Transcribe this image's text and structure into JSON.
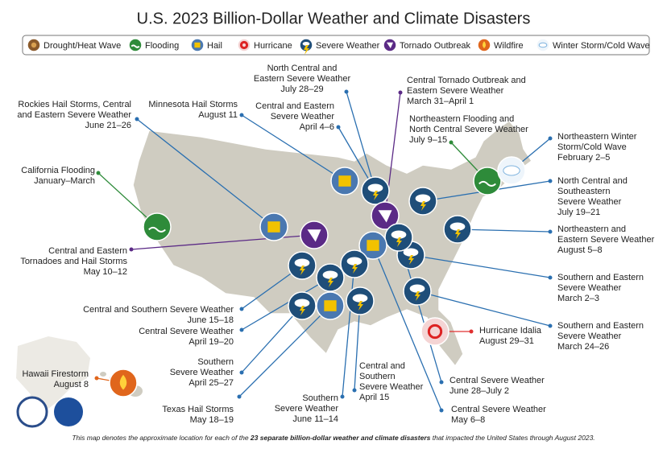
{
  "title": "U.S. 2023 Billion-Dollar Weather and Climate Disasters",
  "legend": [
    "Drought/Heat Wave",
    "Flooding",
    "Hail",
    "Hurricane",
    "Severe Weather",
    "Tornado Outbreak",
    "Wildfire",
    "Winter Storm/Cold Wave"
  ],
  "events": [
    {
      "lines": [
        "Rockies Hail Storms, Central",
        "and Eastern Severe Weather",
        "June 21–26"
      ]
    },
    {
      "lines": [
        "Minnesota Hail Storms",
        "August 11"
      ]
    },
    {
      "lines": [
        "Central and Eastern",
        "Severe Weather",
        "April 4–6"
      ]
    },
    {
      "lines": [
        "North Central and",
        "Eastern Severe Weather",
        "July 28–29"
      ]
    },
    {
      "lines": [
        "Central Tornado Outbreak and",
        "Eastern Severe Weather",
        "March 31–April 1"
      ]
    },
    {
      "lines": [
        "Northeastern Flooding and",
        "North Central Severe Weather",
        "July 9–15"
      ]
    },
    {
      "lines": [
        "Northeastern Winter",
        "Storm/Cold Wave",
        "February 2–5"
      ]
    },
    {
      "lines": [
        "North Central and",
        "Southeastern",
        "Severe Weather",
        "July 19–21"
      ]
    },
    {
      "lines": [
        "Northeastern and",
        "Eastern Severe Weather",
        "August 5–8"
      ]
    },
    {
      "lines": [
        "Southern and Eastern",
        "Severe Weather",
        "March 2–3"
      ]
    },
    {
      "lines": [
        "Southern and Eastern",
        "Severe Weather",
        "March 24–26"
      ]
    },
    {
      "lines": [
        "Hurricane Idalia",
        "August 29–31"
      ]
    },
    {
      "lines": [
        "Central Severe Weather",
        "June 28–July 2"
      ]
    },
    {
      "lines": [
        "Central Severe Weather",
        "May 6–8"
      ]
    },
    {
      "lines": [
        "Central and",
        "Southern",
        "Severe Weather",
        "April 15"
      ]
    },
    {
      "lines": [
        "Southern",
        "Severe Weather",
        "June 11–14"
      ]
    },
    {
      "lines": [
        "Texas Hail Storms",
        "May 18–19"
      ]
    },
    {
      "lines": [
        "Southern",
        "Severe Weather",
        "April 25–27"
      ]
    },
    {
      "lines": [
        "Central Severe Weather",
        "April 19–20"
      ]
    },
    {
      "lines": [
        "Central and Southern Severe Weather",
        "June 15–18"
      ]
    },
    {
      "lines": [
        "Central and Eastern",
        "Tornadoes and Hail Storms",
        "May 10–12"
      ]
    },
    {
      "lines": [
        "California Flooding",
        "January–March"
      ]
    },
    {
      "lines": [
        "Hawaii Firestorm",
        "August 8"
      ]
    }
  ],
  "footnote": {
    "before": "This map denotes the approximate location for each of the ",
    "bold": "23 separate billion-dollar weather and climate disasters",
    "after": " that impacted the United States through August 2023."
  }
}
